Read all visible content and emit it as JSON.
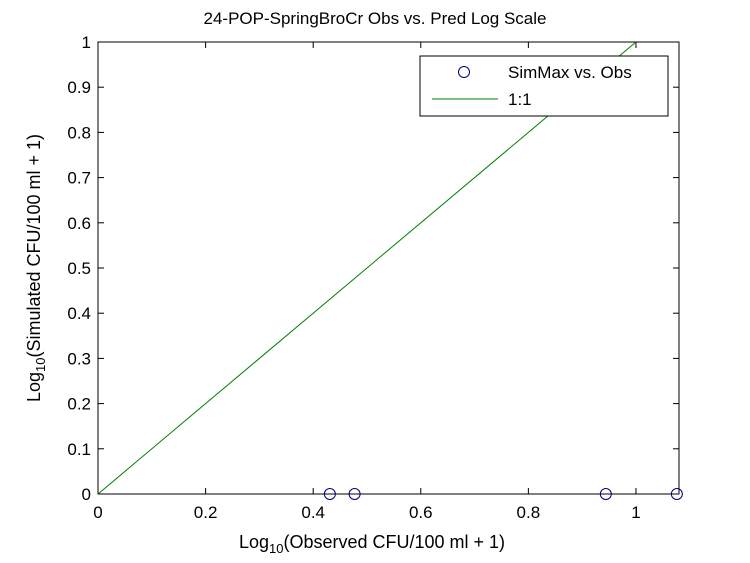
{
  "chart_data": {
    "type": "scatter",
    "title": "24-POP-SpringBroCr Obs vs. Pred Log Scale",
    "xlabel": {
      "prefix": "Log",
      "subscript": "10",
      "suffix": "(Observed CFU/100 ml + 1)"
    },
    "ylabel": {
      "prefix": "Log",
      "subscript": "10",
      "suffix": "(Simulated CFU/100 ml + 1)"
    },
    "xlim": [
      0,
      1.08
    ],
    "ylim": [
      0,
      1
    ],
    "x_ticks": [
      0,
      0.2,
      0.4,
      0.6,
      0.8,
      1
    ],
    "x_tick_labels": [
      "0",
      "0.2",
      "0.4",
      "0.6",
      "0.8",
      "1"
    ],
    "y_ticks": [
      0,
      0.1,
      0.2,
      0.3,
      0.4,
      0.5,
      0.6,
      0.7,
      0.8,
      0.9,
      1
    ],
    "y_tick_labels": [
      "0",
      "0.1",
      "0.2",
      "0.3",
      "0.4",
      "0.5",
      "0.6",
      "0.7",
      "0.8",
      "0.9",
      "1"
    ],
    "grid": false,
    "legend_position": "top-right",
    "series": [
      {
        "name": "SimMax vs. Obs",
        "kind": "marker",
        "marker": "circle",
        "color": "#00007f",
        "points": [
          {
            "x": 0.431,
            "y": 0
          },
          {
            "x": 0.477,
            "y": 0
          },
          {
            "x": 0.944,
            "y": 0
          },
          {
            "x": 1.076,
            "y": 0
          }
        ]
      },
      {
        "name": "1:1",
        "kind": "line",
        "color": "#007f00",
        "points": [
          {
            "x": 0,
            "y": 0
          },
          {
            "x": 1,
            "y": 1
          }
        ]
      }
    ]
  }
}
